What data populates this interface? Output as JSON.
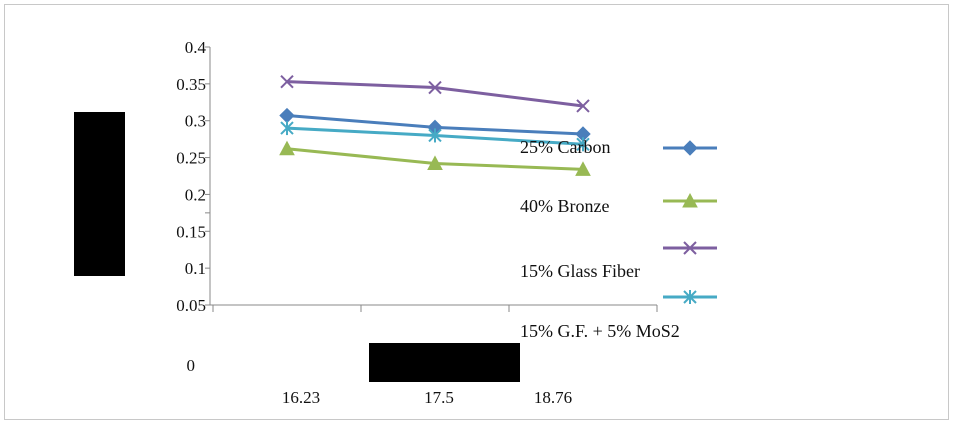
{
  "chart_data": {
    "type": "line",
    "title": "",
    "xlabel": "",
    "ylabel": "",
    "categories": [
      "16.23",
      "17.5",
      "18.76"
    ],
    "y_ticks": [
      "0.4",
      "0.35",
      "0.3",
      "0.25",
      "0.2",
      "0.15",
      "0.1",
      "0.05"
    ],
    "y_zero_label": "0",
    "ylim": [
      0.05,
      0.4
    ],
    "legend_position": "right",
    "series": [
      {
        "name": "25% Carbon",
        "values": [
          0.307,
          0.291,
          0.282
        ],
        "color": "#4a7ebb",
        "marker": "diamond"
      },
      {
        "name": "40% Bronze",
        "values": [
          0.262,
          0.242,
          0.234
        ],
        "color": "#98b954",
        "marker": "triangle"
      },
      {
        "name": "15% Glass Fiber",
        "values": [
          0.353,
          0.345,
          0.32
        ],
        "color": "#7d5fa0",
        "marker": "x"
      },
      {
        "name": "15% G.F. + 5% MoS2",
        "values": [
          0.29,
          0.28,
          0.268
        ],
        "color": "#46aac5",
        "marker": "asterisk"
      }
    ]
  }
}
